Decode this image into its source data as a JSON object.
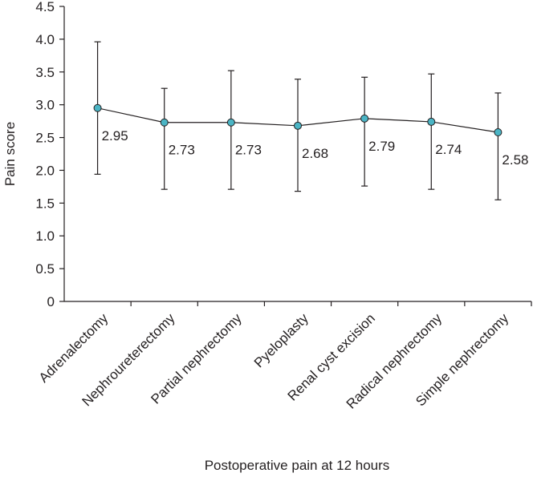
{
  "chart_data": {
    "type": "line",
    "xlabel": "Postoperative pain at 12 hours",
    "ylabel": "Pain score",
    "categories": [
      "Adrenalectomy",
      "Nephroureterectomy",
      "Partial nephrectomy",
      "Pyeloplasty",
      "Renal cyst excision",
      "Radical nephrectomy",
      "Simple nephrectomy"
    ],
    "series": [
      {
        "name": "Pain score",
        "color": "#4bb5c5",
        "values": [
          2.95,
          2.73,
          2.73,
          2.68,
          2.79,
          2.74,
          2.58
        ],
        "error_low": [
          1.94,
          1.71,
          1.71,
          1.68,
          1.76,
          1.71,
          1.55
        ],
        "error_high": [
          3.96,
          3.25,
          3.52,
          3.39,
          3.42,
          3.47,
          3.18
        ]
      }
    ],
    "ylim": [
      0,
      4.5
    ],
    "yticks": [
      0,
      0.5,
      {
        "value": 1,
        "label": "1.0"
      },
      1.5,
      {
        "value": 2,
        "label": "2.0"
      },
      2.5,
      {
        "value": 3,
        "label": "3.0"
      },
      3.5,
      {
        "value": 4,
        "label": "4.0"
      },
      4.5
    ]
  }
}
